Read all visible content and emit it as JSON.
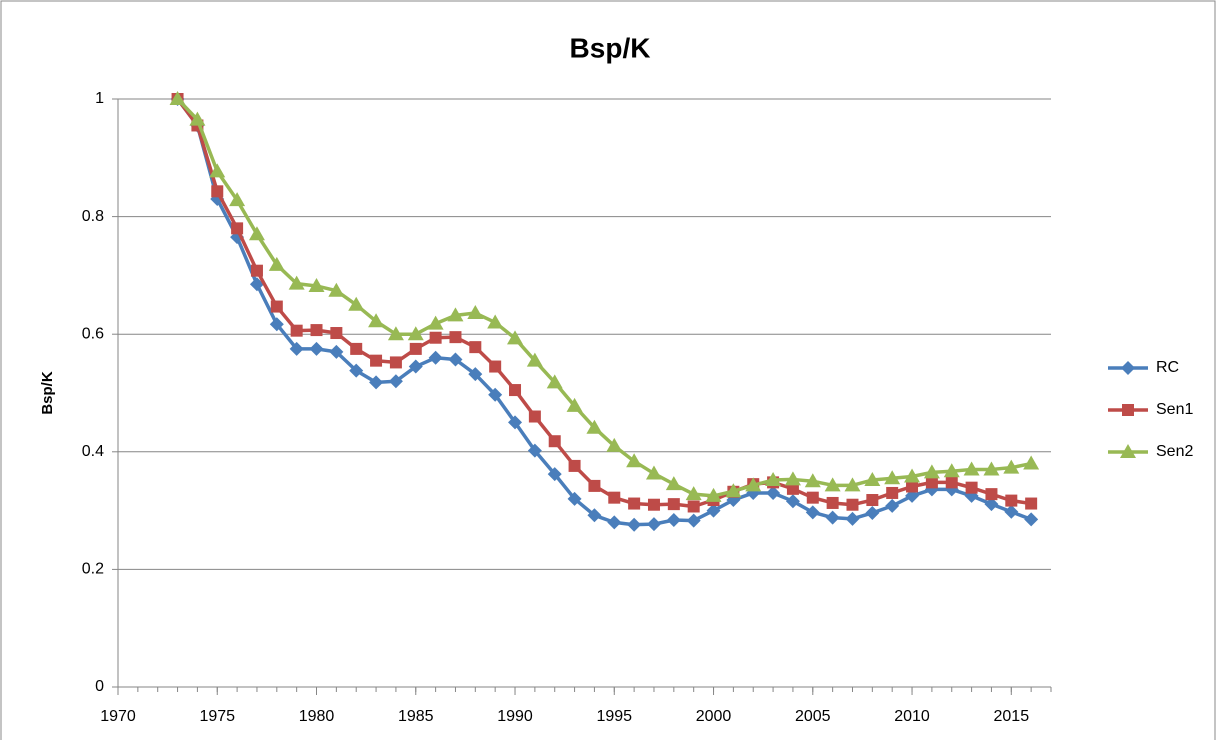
{
  "chart_data": {
    "type": "line",
    "title": "Bsp/K",
    "y_label": "Bsp/K",
    "x": [
      1973,
      1974,
      1975,
      1976,
      1977,
      1978,
      1979,
      1980,
      1981,
      1982,
      1983,
      1984,
      1985,
      1986,
      1987,
      1988,
      1989,
      1990,
      1991,
      1992,
      1993,
      1994,
      1995,
      1996,
      1997,
      1998,
      1999,
      2000,
      2001,
      2002,
      2003,
      2004,
      2005,
      2006,
      2007,
      2008,
      2009,
      2010,
      2011,
      2012,
      2013,
      2014,
      2015,
      2016
    ],
    "series": [
      {
        "name": "RC",
        "color": "#4a7ebb",
        "marker": "diamond",
        "values": [
          1.0,
          0.955,
          0.83,
          0.765,
          0.685,
          0.617,
          0.575,
          0.575,
          0.57,
          0.538,
          0.518,
          0.52,
          0.545,
          0.56,
          0.557,
          0.532,
          0.497,
          0.45,
          0.402,
          0.362,
          0.32,
          0.292,
          0.28,
          0.276,
          0.277,
          0.284,
          0.283,
          0.3,
          0.318,
          0.33,
          0.33,
          0.316,
          0.297,
          0.288,
          0.286,
          0.296,
          0.308,
          0.325,
          0.336,
          0.336,
          0.325,
          0.311,
          0.298,
          0.285
        ]
      },
      {
        "name": "Sen1",
        "color": "#be4b48",
        "marker": "square",
        "values": [
          1.0,
          0.955,
          0.843,
          0.78,
          0.708,
          0.647,
          0.606,
          0.607,
          0.602,
          0.575,
          0.555,
          0.552,
          0.575,
          0.594,
          0.595,
          0.578,
          0.545,
          0.505,
          0.46,
          0.418,
          0.376,
          0.342,
          0.322,
          0.312,
          0.31,
          0.311,
          0.307,
          0.318,
          0.332,
          0.345,
          0.348,
          0.337,
          0.322,
          0.313,
          0.31,
          0.318,
          0.33,
          0.341,
          0.348,
          0.348,
          0.339,
          0.328,
          0.317,
          0.312
        ]
      },
      {
        "name": "Sen2",
        "color": "#98b954",
        "marker": "triangle",
        "values": [
          1.0,
          0.965,
          0.877,
          0.828,
          0.77,
          0.718,
          0.686,
          0.682,
          0.674,
          0.65,
          0.622,
          0.6,
          0.6,
          0.618,
          0.632,
          0.636,
          0.62,
          0.593,
          0.555,
          0.518,
          0.478,
          0.441,
          0.41,
          0.384,
          0.363,
          0.345,
          0.328,
          0.325,
          0.333,
          0.343,
          0.352,
          0.353,
          0.35,
          0.343,
          0.343,
          0.352,
          0.355,
          0.358,
          0.365,
          0.367,
          0.37,
          0.37,
          0.373,
          0.38
        ]
      }
    ],
    "xlim": [
      1970,
      2017
    ],
    "xticks": [
      1970,
      1975,
      1980,
      1985,
      1990,
      1995,
      2000,
      2005,
      2010,
      2015
    ],
    "ylim": [
      0,
      1
    ],
    "yticks": [
      0,
      0.2,
      0.4,
      0.6,
      0.8,
      1
    ],
    "grid": true,
    "legend": "right"
  }
}
